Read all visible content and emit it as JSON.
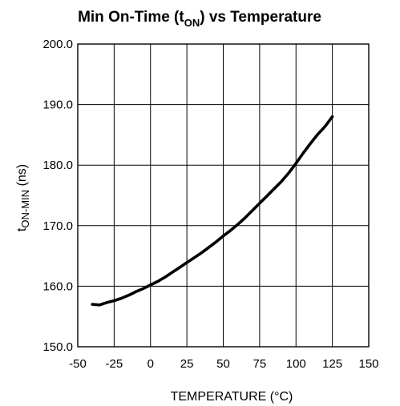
{
  "chart_data": {
    "type": "line",
    "title": {
      "prefix": "Min On-Time (t",
      "subscript": "ON",
      "suffix": ") vs Temperature"
    },
    "xlabel": "TEMPERATURE (°C)",
    "ylabel": {
      "main": "t",
      "subscript": "ON-MIN",
      "suffix": " (ns)"
    },
    "xlim": [
      -50,
      150
    ],
    "ylim": [
      150,
      200
    ],
    "x_ticks": [
      -50,
      -25,
      0,
      25,
      50,
      75,
      100,
      125,
      150
    ],
    "x_tick_labels": [
      "-50",
      "-25",
      "0",
      "25",
      "50",
      "75",
      "100",
      "125",
      "150"
    ],
    "y_ticks": [
      150,
      160,
      170,
      180,
      190,
      200
    ],
    "y_tick_labels": [
      "150.0",
      "160.0",
      "170.0",
      "180.0",
      "190.0",
      "200.0"
    ],
    "grid": true,
    "series": [
      {
        "x": [
          -40,
          -35,
          -30,
          -25,
          -20,
          -15,
          -10,
          -5,
          0,
          5,
          10,
          15,
          20,
          25,
          30,
          35,
          40,
          45,
          50,
          55,
          60,
          65,
          70,
          75,
          80,
          85,
          90,
          95,
          100,
          105,
          110,
          115,
          120,
          125
        ],
        "values": [
          157.0,
          156.9,
          157.3,
          157.6,
          158.0,
          158.5,
          159.1,
          159.6,
          160.2,
          160.8,
          161.5,
          162.3,
          163.1,
          163.9,
          164.7,
          165.5,
          166.4,
          167.3,
          168.3,
          169.2,
          170.2,
          171.3,
          172.5,
          173.7,
          174.9,
          176.1,
          177.3,
          178.7,
          180.3,
          182.0,
          183.6,
          185.1,
          186.4,
          188.0
        ]
      }
    ]
  }
}
